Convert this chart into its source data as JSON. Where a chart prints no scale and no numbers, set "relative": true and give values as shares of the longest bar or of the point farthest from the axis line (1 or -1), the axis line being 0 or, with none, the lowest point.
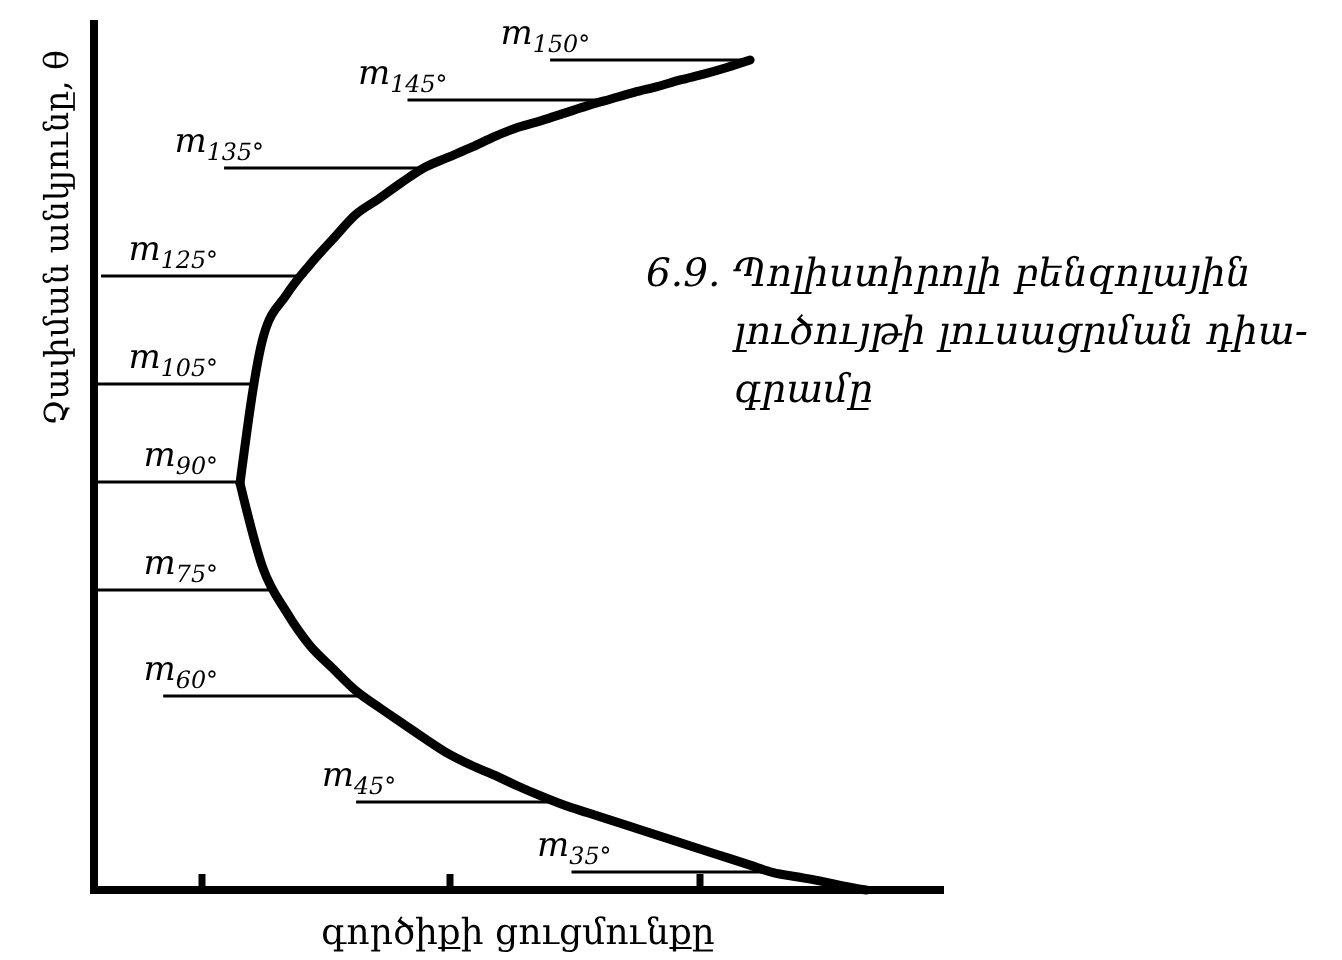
{
  "chart_data": {
    "type": "line",
    "relative": true,
    "xlabel": "գործիքի ցուցմունքը",
    "ylabel": "Չափման անկյունը, θ",
    "categories": [
      null,
      null,
      null,
      null,
      null,
      null,
      null,
      null,
      null,
      null,
      null,
      null,
      null,
      null,
      null,
      null,
      null,
      null,
      null,
      null,
      null,
      null,
      null,
      null,
      null,
      null,
      null,
      null
    ],
    "series": [
      {
        "color": "#000000",
        "values": [
          0.49,
          0.666,
          0.717,
          0.753,
          0.784,
          0.814,
          0.833,
          0.853,
          0.871,
          0.883,
          0.895,
          0.908,
          0.919,
          0.927,
          0.936,
          0.945,
          0.953,
          0.961,
          0.968,
          0.976,
          0.983,
          0.991,
          1.0,
          null,
          null,
          null,
          null,
          null
        ]
      },
      {
        "color": "#000000",
        "values": [
          0.49,
          0.387,
          0.335,
          0.295,
          0.267,
          0.24,
          0.22,
          0.201,
          0.182,
          0.164,
          0.15,
          0.138,
          0.125,
          0.113,
          0.102,
          0.093,
          0.084,
          0.075,
          0.066,
          0.057,
          0.048,
          0.039,
          0.03,
          0.021,
          0.016,
          0.011,
          0.005,
          0.0
        ]
      }
    ],
    "annotations": [
      "m$_{150°}$",
      "m$_{145°}$",
      "m$_{135°}$",
      "m$_{125°}$",
      "m$_{105°}$",
      "m$_{90°}$",
      "m$_{75°}$",
      "m$_{60°}$",
      "m$_{45°}$",
      "m$_{35°}$",
      "6.9. Պոլիստիրոլի բենզոլային\nլուծույթի լուսացրման դիա-\nգրամը"
    ]
  }
}
